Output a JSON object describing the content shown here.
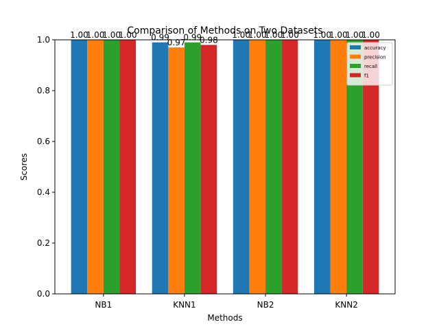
{
  "chart_data": {
    "type": "bar",
    "title": "Comparison of Methods on Two Datasets",
    "xlabel": "Methods",
    "ylabel": "Scores",
    "ylim": [
      0,
      1.0
    ],
    "yticks": [
      "0.0",
      "0.2",
      "0.4",
      "0.6",
      "0.8",
      "1.0"
    ],
    "categories": [
      "NB1",
      "KNN1",
      "NB2",
      "KNN2"
    ],
    "series": [
      {
        "name": "accuracy",
        "color": "#1f77b4",
        "values": [
          1.0,
          0.99,
          1.0,
          1.0
        ],
        "labels": [
          "1.00",
          "0.99",
          "1.00",
          "1.00"
        ]
      },
      {
        "name": "precision",
        "color": "#ff7f0e",
        "values": [
          1.0,
          0.97,
          1.0,
          1.0
        ],
        "labels": [
          "1.00",
          "0.97",
          "1.00",
          "1.00"
        ]
      },
      {
        "name": "recall",
        "color": "#2ca02c",
        "values": [
          1.0,
          0.99,
          1.0,
          1.0
        ],
        "labels": [
          "1.00",
          "0.99",
          "1.00",
          "1.00"
        ]
      },
      {
        "name": "f1",
        "color": "#d62728",
        "values": [
          1.0,
          0.98,
          1.0,
          1.0
        ],
        "labels": [
          "1.00",
          "0.98",
          "1.00",
          "1.00"
        ]
      }
    ],
    "grid": false,
    "legend_position": "top-right"
  }
}
